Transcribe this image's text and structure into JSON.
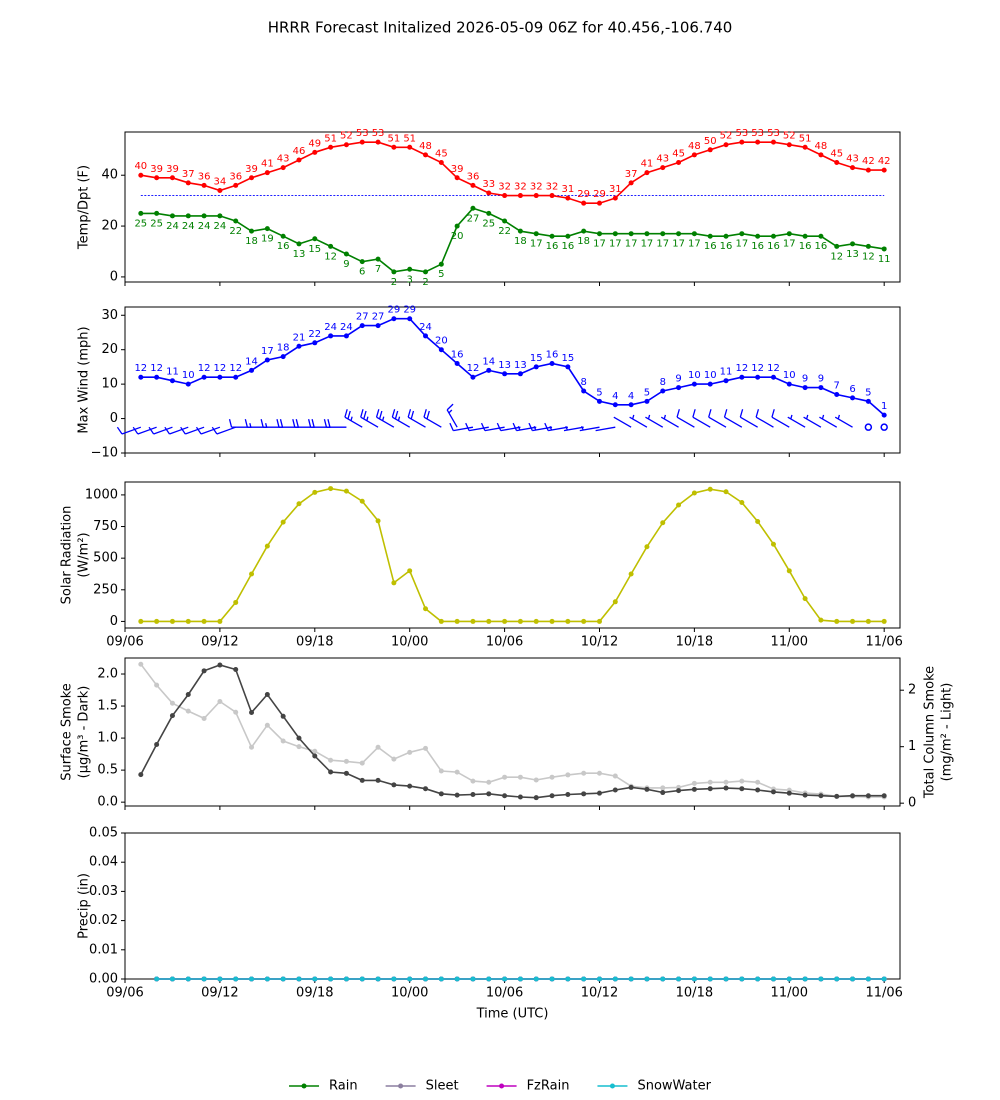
{
  "title": "HRRR Forecast Initalized 2026-05-09 06Z for 40.456,-106.740",
  "chart_data": [
    {
      "type": "line",
      "ylabel": [
        "Temp/Dpt (F)"
      ],
      "x": [
        "09/07",
        "09/08",
        "09/09",
        "09/10",
        "09/11",
        "09/12",
        "09/13",
        "09/14",
        "09/15",
        "09/16",
        "09/17",
        "09/18",
        "09/19",
        "09/20",
        "09/21",
        "09/22",
        "09/23",
        "10/00",
        "10/01",
        "10/02",
        "10/03",
        "10/04",
        "10/05",
        "10/06",
        "10/07",
        "10/08",
        "10/09",
        "10/10",
        "10/11",
        "10/12",
        "10/13",
        "10/14",
        "10/15",
        "10/16",
        "10/17",
        "10/18",
        "10/19",
        "10/20",
        "10/21",
        "10/22",
        "10/23",
        "11/00",
        "11/01",
        "11/02",
        "11/03",
        "11/04",
        "11/05",
        "11/06"
      ],
      "xlim": [
        "09/06",
        "11/07"
      ],
      "xticks": [
        "09/06",
        "09/12",
        "09/18",
        "10/00",
        "10/06",
        "10/12",
        "10/18",
        "11/00",
        "11/06"
      ],
      "xtick_labels": false,
      "ylim": [
        -2,
        57
      ],
      "yticks": [
        0,
        20,
        40
      ],
      "hlines": [
        {
          "value": 32,
          "color": "blue"
        }
      ],
      "series": [
        {
          "color": "red",
          "data_labels": "above",
          "values": [
            40,
            39,
            39,
            37,
            36,
            34,
            36,
            39,
            41,
            43,
            46,
            49,
            51,
            52,
            53,
            53,
            51,
            51,
            48,
            45,
            39,
            36,
            33,
            32,
            32,
            32,
            32,
            31,
            29,
            29,
            31,
            37,
            41,
            43,
            45,
            48,
            50,
            52,
            53,
            53,
            53,
            52,
            51,
            48,
            45,
            43,
            42,
            42
          ]
        },
        {
          "color": "green",
          "data_labels": "below",
          "values": [
            25,
            25,
            24,
            24,
            24,
            24,
            22,
            18,
            19,
            16,
            13,
            15,
            12,
            9,
            6,
            7,
            2,
            3,
            2,
            5,
            20,
            27,
            25,
            22,
            18,
            17,
            16,
            16,
            18,
            17,
            17,
            17,
            17,
            17,
            17,
            17,
            16,
            16,
            17,
            16,
            16,
            17,
            16,
            16,
            12,
            13,
            12,
            11
          ]
        }
      ]
    },
    {
      "type": "line",
      "ylabel": [
        "Max Wind (mph)"
      ],
      "x": [
        "09/07",
        "09/08",
        "09/09",
        "09/10",
        "09/11",
        "09/12",
        "09/13",
        "09/14",
        "09/15",
        "09/16",
        "09/17",
        "09/18",
        "09/19",
        "09/20",
        "09/21",
        "09/22",
        "09/23",
        "10/00",
        "10/01",
        "10/02",
        "10/03",
        "10/04",
        "10/05",
        "10/06",
        "10/07",
        "10/08",
        "10/09",
        "10/10",
        "10/11",
        "10/12",
        "10/13",
        "10/14",
        "10/15",
        "10/16",
        "10/17",
        "10/18",
        "10/19",
        "10/20",
        "10/21",
        "10/22",
        "10/23",
        "11/00",
        "11/01",
        "11/02",
        "11/03",
        "11/04",
        "11/05",
        "11/06"
      ],
      "xlim": [
        "09/06",
        "11/07"
      ],
      "xticks": [
        "09/06",
        "09/12",
        "09/18",
        "10/00",
        "10/06",
        "10/12",
        "10/18",
        "11/00",
        "11/06"
      ],
      "xtick_labels": false,
      "ylim": [
        -10,
        32.4
      ],
      "yticks": [
        {
          "value": -10,
          "label": "−10"
        },
        0,
        10,
        20,
        30
      ],
      "series": [
        {
          "color": "blue",
          "data_labels": "above",
          "values": [
            12,
            12,
            11,
            10,
            12,
            12,
            12,
            14,
            17,
            18,
            21,
            22,
            24,
            24,
            27,
            27,
            29,
            29,
            24,
            20,
            16,
            12,
            14,
            13,
            13,
            15,
            16,
            15,
            8,
            5,
            4,
            4,
            5,
            8,
            9,
            10,
            10,
            11,
            12,
            12,
            12,
            10,
            9,
            9,
            7,
            6,
            5,
            1
          ],
          "barb_directions": [
            250,
            250,
            250,
            250,
            250,
            250,
            250,
            270,
            270,
            270,
            270,
            270,
            270,
            270,
            300,
            300,
            300,
            300,
            300,
            300,
            330,
            260,
            260,
            260,
            260,
            260,
            260,
            260,
            260,
            260,
            260,
            300,
            300,
            300,
            300,
            300,
            300,
            300,
            300,
            300,
            300,
            300,
            300,
            300,
            300,
            300,
            null,
            null
          ]
        }
      ]
    },
    {
      "type": "line",
      "ylabel": [
        "Solar Radiation",
        "(W/m²)"
      ],
      "x": [
        "09/07",
        "09/08",
        "09/09",
        "09/10",
        "09/11",
        "09/12",
        "09/13",
        "09/14",
        "09/15",
        "09/16",
        "09/17",
        "09/18",
        "09/19",
        "09/20",
        "09/21",
        "09/22",
        "09/23",
        "10/00",
        "10/01",
        "10/02",
        "10/03",
        "10/04",
        "10/05",
        "10/06",
        "10/07",
        "10/08",
        "10/09",
        "10/10",
        "10/11",
        "10/12",
        "10/13",
        "10/14",
        "10/15",
        "10/16",
        "10/17",
        "10/18",
        "10/19",
        "10/20",
        "10/21",
        "10/22",
        "10/23",
        "11/00",
        "11/01",
        "11/02",
        "11/03",
        "11/04",
        "11/05",
        "11/06"
      ],
      "xlim": [
        "09/06",
        "11/07"
      ],
      "xticks": [
        "09/06",
        "09/12",
        "09/18",
        "10/00",
        "10/06",
        "10/12",
        "10/18",
        "11/00",
        "11/06"
      ],
      "xtick_labels": true,
      "ylim": [
        -52,
        1102
      ],
      "yticks": [
        0,
        250,
        500,
        750,
        1000
      ],
      "series": [
        {
          "color": "#bfbf00",
          "values": [
            0,
            0,
            0,
            0,
            0,
            0,
            150,
            375,
            595,
            785,
            930,
            1020,
            1050,
            1030,
            950,
            795,
            305,
            400,
            100,
            0,
            0,
            0,
            0,
            0,
            0,
            0,
            0,
            0,
            0,
            0,
            155,
            375,
            590,
            780,
            920,
            1015,
            1045,
            1025,
            940,
            790,
            610,
            400,
            180,
            10,
            0,
            0,
            0,
            0
          ]
        }
      ]
    },
    {
      "type": "line",
      "ylabel": [
        "Surface Smoke",
        "(µg/m³ - Dark)"
      ],
      "y2label": [
        "Total Column Smoke",
        "(mg/m² - Light)"
      ],
      "x": [
        "09/07",
        "09/08",
        "09/09",
        "09/10",
        "09/11",
        "09/12",
        "09/13",
        "09/14",
        "09/15",
        "09/16",
        "09/17",
        "09/18",
        "09/19",
        "09/20",
        "09/21",
        "09/22",
        "09/23",
        "10/00",
        "10/01",
        "10/02",
        "10/03",
        "10/04",
        "10/05",
        "10/06",
        "10/07",
        "10/08",
        "10/09",
        "10/10",
        "10/11",
        "10/12",
        "10/13",
        "10/14",
        "10/15",
        "10/16",
        "10/17",
        "10/18",
        "10/19",
        "10/20",
        "10/21",
        "10/22",
        "10/23",
        "11/00",
        "11/01",
        "11/02",
        "11/03",
        "11/04",
        "11/05",
        "11/06"
      ],
      "xlim": [
        "09/06",
        "11/07"
      ],
      "xticks": [
        "09/06",
        "09/12",
        "09/18",
        "10/00",
        "10/06",
        "10/12",
        "10/18",
        "11/00",
        "11/06"
      ],
      "xtick_labels": false,
      "ylim": [
        -0.06,
        2.25
      ],
      "yticks": [
        {
          "value": 0,
          "label": "0.0"
        },
        {
          "value": 0.5,
          "label": "0.5"
        },
        {
          "value": 1,
          "label": "1.0"
        },
        {
          "value": 1.5,
          "label": "1.5"
        },
        {
          "value": 2,
          "label": "2.0"
        }
      ],
      "y2lim": [
        -0.05,
        2.57
      ],
      "y2ticks": [
        0,
        1,
        2
      ],
      "series": [
        {
          "color": "#c8c8c8",
          "axis": "y2",
          "values": [
            2.46,
            2.09,
            1.77,
            1.63,
            1.5,
            1.8,
            1.61,
            0.99,
            1.38,
            1.1,
            1.0,
            0.92,
            0.76,
            0.74,
            0.71,
            0.99,
            0.78,
            0.9,
            0.97,
            0.57,
            0.55,
            0.39,
            0.37,
            0.46,
            0.46,
            0.41,
            0.46,
            0.5,
            0.53,
            0.53,
            0.48,
            0.3,
            0.27,
            0.27,
            0.28,
            0.35,
            0.37,
            0.37,
            0.39,
            0.37,
            0.25,
            0.23,
            0.18,
            0.16,
            0.12,
            0.12,
            0.11,
            0.11
          ]
        },
        {
          "color": "#444444",
          "values": [
            0.43,
            0.9,
            1.35,
            1.68,
            2.05,
            2.14,
            2.07,
            1.4,
            1.68,
            1.34,
            1.0,
            0.72,
            0.47,
            0.45,
            0.34,
            0.34,
            0.27,
            0.25,
            0.21,
            0.13,
            0.11,
            0.12,
            0.13,
            0.1,
            0.08,
            0.07,
            0.1,
            0.12,
            0.13,
            0.14,
            0.19,
            0.23,
            0.2,
            0.15,
            0.18,
            0.2,
            0.21,
            0.22,
            0.21,
            0.19,
            0.16,
            0.14,
            0.11,
            0.1,
            0.09,
            0.1,
            0.1,
            0.1
          ]
        }
      ]
    },
    {
      "type": "line",
      "ylabel": [
        "Precip (in)"
      ],
      "xlabel": "Time (UTC)",
      "legend": "lower center",
      "x": [
        "09/08",
        "09/09",
        "09/10",
        "09/11",
        "09/12",
        "09/13",
        "09/14",
        "09/15",
        "09/16",
        "09/17",
        "09/18",
        "09/19",
        "09/20",
        "09/21",
        "09/22",
        "09/23",
        "10/00",
        "10/01",
        "10/02",
        "10/03",
        "10/04",
        "10/05",
        "10/06",
        "10/07",
        "10/08",
        "10/09",
        "10/10",
        "10/11",
        "10/12",
        "10/13",
        "10/14",
        "10/15",
        "10/16",
        "10/17",
        "10/18",
        "10/19",
        "10/20",
        "10/21",
        "10/22",
        "10/23",
        "11/00",
        "11/01",
        "11/02",
        "11/03",
        "11/04",
        "11/05",
        "11/06"
      ],
      "xlim": [
        "09/06",
        "11/07"
      ],
      "xticks": [
        "09/06",
        "09/12",
        "09/18",
        "10/00",
        "10/06",
        "10/12",
        "10/18",
        "11/00",
        "11/06"
      ],
      "xtick_labels": true,
      "ylim": [
        0,
        0.05
      ],
      "yticks": [
        {
          "value": 0,
          "label": "0.00"
        },
        {
          "value": 0.01,
          "label": "0.01"
        },
        {
          "value": 0.02,
          "label": "0.02"
        },
        {
          "value": 0.03,
          "label": "0.03"
        },
        {
          "value": 0.04,
          "label": "0.04"
        },
        {
          "value": 0.05,
          "label": "0.05"
        }
      ],
      "series": [
        {
          "name": "Rain",
          "color": "green",
          "values": [
            0,
            0,
            0,
            0,
            0,
            0,
            0,
            0,
            0,
            0,
            0,
            0,
            0,
            0,
            0,
            0,
            0,
            0,
            0,
            0,
            0,
            0,
            0,
            0,
            0,
            0,
            0,
            0,
            0,
            0,
            0,
            0,
            0,
            0,
            0,
            0,
            0,
            0,
            0,
            0,
            0,
            0,
            0,
            0,
            0,
            0,
            0
          ]
        },
        {
          "name": "Sleet",
          "color": "#8c7fa0",
          "values": [
            0,
            0,
            0,
            0,
            0,
            0,
            0,
            0,
            0,
            0,
            0,
            0,
            0,
            0,
            0,
            0,
            0,
            0,
            0,
            0,
            0,
            0,
            0,
            0,
            0,
            0,
            0,
            0,
            0,
            0,
            0,
            0,
            0,
            0,
            0,
            0,
            0,
            0,
            0,
            0,
            0,
            0,
            0,
            0,
            0,
            0,
            0
          ]
        },
        {
          "name": "FzRain",
          "color": "#bf00bf",
          "values": [
            0,
            0,
            0,
            0,
            0,
            0,
            0,
            0,
            0,
            0,
            0,
            0,
            0,
            0,
            0,
            0,
            0,
            0,
            0,
            0,
            0,
            0,
            0,
            0,
            0,
            0,
            0,
            0,
            0,
            0,
            0,
            0,
            0,
            0,
            0,
            0,
            0,
            0,
            0,
            0,
            0,
            0,
            0,
            0,
            0,
            0,
            0
          ]
        },
        {
          "name": "SnowWater",
          "color": "#17becf",
          "values": [
            0,
            0,
            0,
            0,
            0,
            0,
            0,
            0,
            0,
            0,
            0,
            0,
            0,
            0,
            0,
            0,
            0,
            0,
            0,
            0,
            0,
            0,
            0,
            0,
            0,
            0,
            0,
            0,
            0,
            0,
            0,
            0,
            0,
            0,
            0,
            0,
            0,
            0,
            0,
            0,
            0,
            0,
            0,
            0,
            0,
            0,
            0
          ]
        }
      ]
    }
  ]
}
